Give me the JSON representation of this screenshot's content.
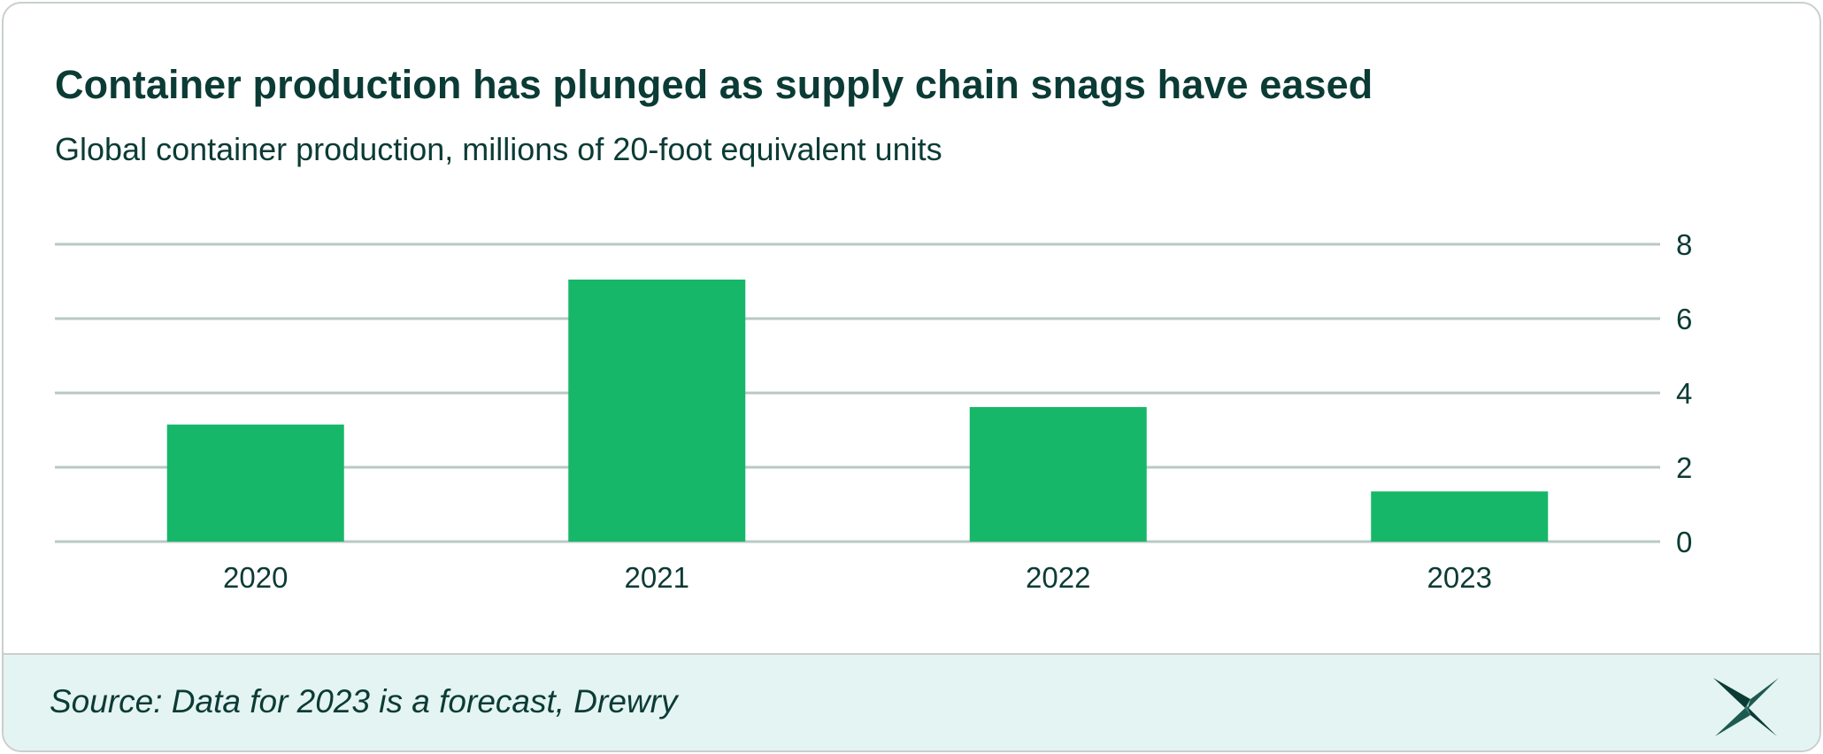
{
  "header": {
    "title": "Container production has plunged as supply chain snags have eased",
    "subtitle": "Global container production, millions of 20-foot equivalent units"
  },
  "footer": {
    "source": "Source: Data for 2023 is a forecast, Drewry"
  },
  "colors": {
    "bar": "#16b769",
    "grid": "#b9c8c4",
    "text": "#0b3b35",
    "footer_bg": "#e4f4f2"
  },
  "logo_icon": "star-logo-icon",
  "chart_data": {
    "type": "bar",
    "categories": [
      "2020",
      "2021",
      "2022",
      "2023"
    ],
    "values": [
      3.15,
      7.05,
      3.62,
      1.35
    ],
    "ylim": [
      0,
      8
    ],
    "yticks": [
      0,
      2,
      4,
      6,
      8
    ],
    "title": "",
    "xlabel": "",
    "ylabel": "",
    "grid": true,
    "y_axis_side": "right"
  }
}
